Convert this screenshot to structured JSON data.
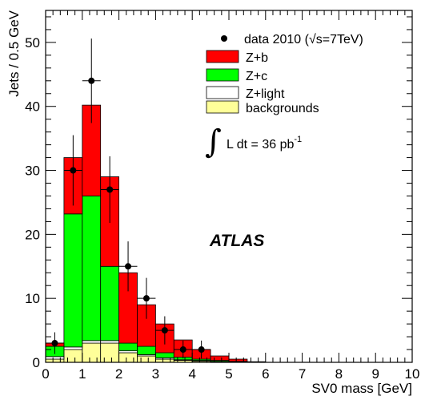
{
  "chart_data": {
    "type": "bar",
    "stacked": true,
    "xlabel": "SV0 mass [GeV]",
    "ylabel": "Jets / 0.5 GeV",
    "xlim": [
      0,
      10
    ],
    "ylim": [
      0,
      55
    ],
    "bin_width": 0.5,
    "x_ticks": [
      0,
      1,
      2,
      3,
      4,
      5,
      6,
      7,
      8,
      9,
      10
    ],
    "y_ticks": [
      0,
      10,
      20,
      30,
      40,
      50
    ],
    "bin_edges": [
      0,
      0.5,
      1.0,
      1.5,
      2.0,
      2.5,
      3.0,
      3.5,
      4.0,
      4.5,
      5.0,
      5.5,
      6.0
    ],
    "series": [
      {
        "name": "backgrounds",
        "color": "#ffff99",
        "values": [
          0.5,
          2.0,
          3.0,
          3.0,
          1.5,
          1.0,
          0.5,
          0.3,
          0.2,
          0.1,
          0.05,
          0
        ]
      },
      {
        "name": "Z+light",
        "color": "#ffffff",
        "values": [
          0.4,
          0.4,
          0.4,
          0.4,
          0.3,
          0.2,
          0.2,
          0.1,
          0.1,
          0.05,
          0.05,
          0
        ]
      },
      {
        "name": "Z+c",
        "color": "#00ff00",
        "values": [
          1.6,
          20.8,
          22.6,
          11.6,
          1.2,
          1.3,
          0.8,
          0.4,
          0.2,
          0.15,
          0.05,
          0
        ]
      },
      {
        "name": "Z+b",
        "color": "#ff0000",
        "values": [
          0.5,
          8.8,
          14.2,
          14.0,
          11.0,
          6.5,
          4.5,
          2.7,
          1.5,
          0.7,
          0.35,
          0.1
        ]
      }
    ],
    "data_points": {
      "name": "data 2010 (√s=7TeV)",
      "x": [
        0.25,
        0.75,
        1.25,
        1.75,
        2.25,
        2.75,
        3.25,
        3.75,
        4.25
      ],
      "y": [
        3,
        30,
        44,
        27,
        15,
        10,
        5,
        2,
        2
      ],
      "yerr": [
        1.7,
        5.5,
        6.6,
        5.2,
        3.9,
        3.2,
        2.2,
        1.4,
        1.4
      ]
    },
    "legend_placement": "top-right",
    "annotations": {
      "atlas": "ATLAS",
      "lumi": "L dt = 36 pb",
      "lumi_sup": "-1"
    }
  }
}
